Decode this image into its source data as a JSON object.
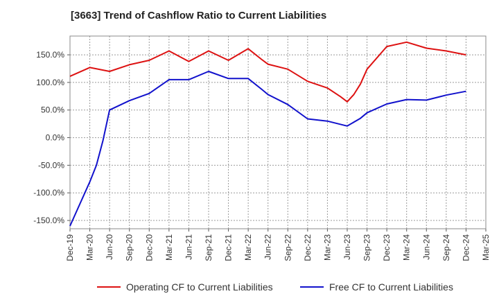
{
  "chart_data": {
    "type": "line",
    "title": "[3663]  Trend of Cashflow Ratio to Current Liabilities",
    "xlabel": "",
    "ylabel": "",
    "x_ticks": [
      "Dec-19",
      "Mar-20",
      "Jun-20",
      "Sep-20",
      "Dec-20",
      "Mar-21",
      "Jun-21",
      "Sep-21",
      "Dec-21",
      "Mar-22",
      "Jun-22",
      "Sep-22",
      "Dec-22",
      "Mar-23",
      "Jun-23",
      "Sep-23",
      "Dec-23",
      "Mar-24",
      "Jun-24",
      "Sep-24",
      "Dec-24",
      "Mar-25"
    ],
    "y_ticks": [
      "150.0%",
      "100.0%",
      "50.0%",
      "0.0%",
      "-50.0%",
      "-100.0%",
      "-150.0%"
    ],
    "y_tick_values": [
      150,
      100,
      50,
      0,
      -50,
      -100,
      -150
    ],
    "ylim": [
      -165,
      184
    ],
    "grid": true,
    "legend_position": "bottom",
    "series": [
      {
        "name": "Operating CF to Current Liabilities",
        "color": "#dd1111",
        "points": [
          [
            "Dec-19",
            111
          ],
          [
            "Mar-20",
            127
          ],
          [
            "Jun-20",
            120
          ],
          [
            "Sep-20",
            132
          ],
          [
            "Dec-20",
            140
          ],
          [
            "Mar-21",
            157
          ],
          [
            "Jun-21",
            138
          ],
          [
            "Sep-21",
            157
          ],
          [
            "Dec-21",
            140
          ],
          [
            "Mar-22",
            161
          ],
          [
            "May-22",
            142
          ],
          [
            "Jun-22",
            133
          ],
          [
            "Sep-22",
            124
          ],
          [
            "Dec-22",
            102
          ],
          [
            "Mar-23",
            90
          ],
          [
            "May-23",
            74
          ],
          [
            "Jun-23",
            65
          ],
          [
            "Jul-23",
            78
          ],
          [
            "Aug-23",
            97
          ],
          [
            "Sep-23",
            124
          ],
          [
            "Dec-23",
            165
          ],
          [
            "Mar-24",
            173
          ],
          [
            "Jun-24",
            162
          ],
          [
            "Sep-24",
            157
          ],
          [
            "Dec-24",
            150
          ]
        ]
      },
      {
        "name": "Free CF to Current Liabilities",
        "color": "#1111cc",
        "points": [
          [
            "Dec-19",
            -160
          ],
          [
            "Mar-20",
            -80
          ],
          [
            "Apr-20",
            -50
          ],
          [
            "May-20",
            -5
          ],
          [
            "Jun-20",
            50
          ],
          [
            "Sep-20",
            67
          ],
          [
            "Dec-20",
            80
          ],
          [
            "Mar-21",
            105
          ],
          [
            "Jun-21",
            105
          ],
          [
            "Sep-21",
            120
          ],
          [
            "Dec-21",
            107
          ],
          [
            "Mar-22",
            107
          ],
          [
            "May-22",
            88
          ],
          [
            "Jun-22",
            78
          ],
          [
            "Sep-22",
            60
          ],
          [
            "Dec-22",
            34
          ],
          [
            "Mar-23",
            30
          ],
          [
            "Jun-23",
            21
          ],
          [
            "Aug-23",
            35
          ],
          [
            "Sep-23",
            45
          ],
          [
            "Dec-23",
            61
          ],
          [
            "Mar-24",
            69
          ],
          [
            "Jun-24",
            68
          ],
          [
            "Sep-24",
            77
          ],
          [
            "Dec-24",
            84
          ]
        ]
      }
    ]
  }
}
